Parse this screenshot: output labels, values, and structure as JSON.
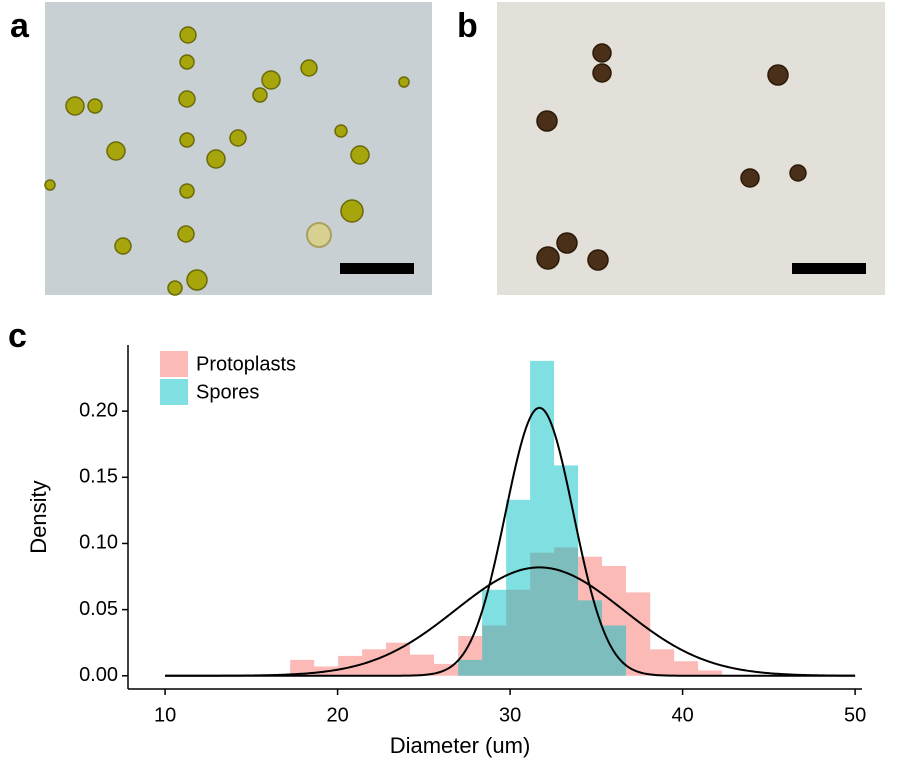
{
  "panel_labels": [
    "a",
    "b",
    "c"
  ],
  "chart_data": {
    "type": "histogram",
    "x_label": "Diameter (um)",
    "y_label": "Density",
    "bins": [
      17.25,
      18.64,
      20.03,
      21.42,
      22.81,
      24.2,
      25.59,
      26.99,
      28.38,
      29.77,
      31.16,
      32.55,
      33.94,
      35.33,
      36.72,
      38.12,
      39.51,
      40.9,
      42.29
    ],
    "series": [
      {
        "name": "Protoplasts",
        "color": "#f8766d",
        "values": [
          0.012,
          0.007,
          0.015,
          0.02,
          0.025,
          0.016,
          0.009,
          0.03,
          0.038,
          0.065,
          0.093,
          0.097,
          0.09,
          0.083,
          0.063,
          0.02,
          0.011,
          0.004
        ]
      },
      {
        "name": "Spores",
        "color": "#00bfc4",
        "values": [
          0,
          0,
          0,
          0,
          0,
          0,
          0,
          0.012,
          0.065,
          0.133,
          0.238,
          0.159,
          0.057,
          0.038,
          0,
          0,
          0,
          0
        ]
      }
    ],
    "curves": [
      {
        "mean": 31.7,
        "sd": 4.87
      },
      {
        "mean": 31.7,
        "sd": 1.97
      }
    ],
    "curve_xrange": [
      10,
      50
    ],
    "curve_color": "#000000",
    "xlim": [
      7.85,
      50.4
    ],
    "ylim": [
      -0.01,
      0.25
    ],
    "xticks": [
      10,
      20,
      30,
      40,
      50
    ],
    "yticks": [
      {
        "value": 0,
        "label": "0.00"
      },
      {
        "value": 0.05,
        "label": "0.05"
      },
      {
        "value": 0.1,
        "label": "0.10"
      },
      {
        "value": 0.15,
        "label": "0.15"
      },
      {
        "value": 0.2,
        "label": "0.20"
      }
    ],
    "legend": "top-left"
  }
}
